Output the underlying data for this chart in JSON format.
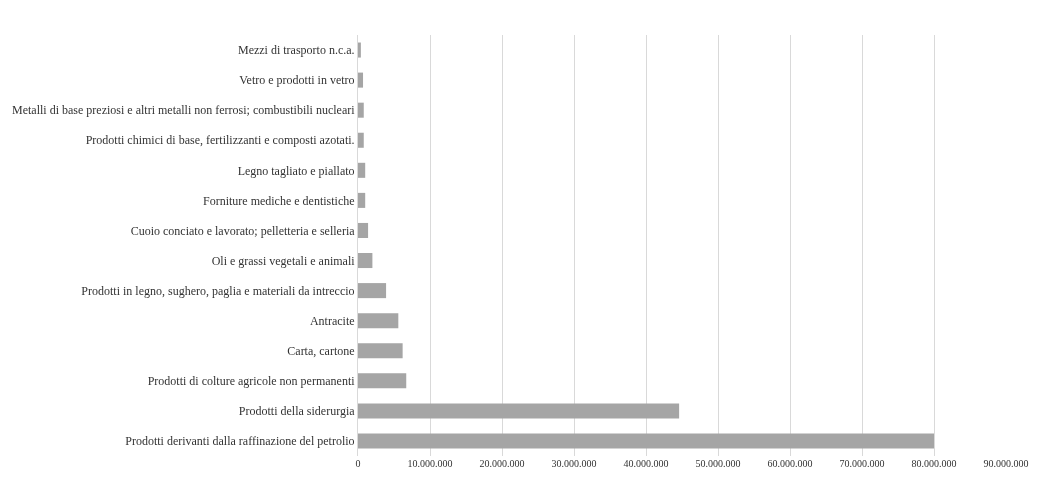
{
  "chart_data": {
    "type": "bar",
    "orientation": "horizontal",
    "categories": [
      "Mezzi di trasporto n.c.a.",
      "Vetro e prodotti in vetro",
      "Metalli di base preziosi e altri metalli non ferrosi; combustibili nucleari",
      "Prodotti chimici di base, fertilizzanti e composti azotati.",
      "Legno tagliato e piallato",
      "Forniture mediche e dentistiche",
      "Cuoio conciato e lavorato; pelletteria e selleria",
      "Oli e grassi vegetali e animali",
      "Prodotti in legno, sughero, paglia e materiali da intreccio",
      "Antracite",
      "Carta, cartone",
      "Prodotti di colture agricole non permanenti",
      "Prodotti della siderurgia",
      "Prodotti derivanti dalla raffinazione del petrolio"
    ],
    "values": [
      400000,
      700000,
      800000,
      800000,
      1000000,
      1000000,
      1400000,
      2000000,
      3900000,
      5600000,
      6200000,
      6700000,
      44600000,
      80000000
    ],
    "color": "#a5a5a5",
    "xlim": [
      0,
      90000000
    ],
    "xticks": [
      {
        "value": 0,
        "label": "0"
      },
      {
        "value": 10000000,
        "label": "10.000.000"
      },
      {
        "value": 20000000,
        "label": "20.000.000"
      },
      {
        "value": 30000000,
        "label": "30.000.000"
      },
      {
        "value": 40000000,
        "label": "40.000.000"
      },
      {
        "value": 50000000,
        "label": "50.000.000"
      },
      {
        "value": 60000000,
        "label": "60.000.000"
      },
      {
        "value": 70000000,
        "label": "70.000.000"
      },
      {
        "value": 80000000,
        "label": "80.000.000"
      },
      {
        "value": 90000000,
        "label": "90.000.000"
      }
    ],
    "grid": "x",
    "legend": false
  }
}
